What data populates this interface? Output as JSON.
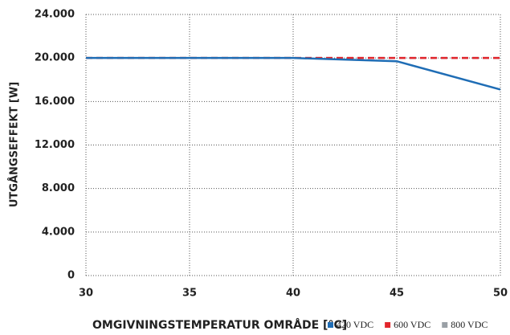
{
  "chart_data": {
    "type": "line",
    "x_label": "OMGIVNINGSTEMPERATUR OMRÅDE [°C]",
    "y_label": "UTGÅNGSEFFEKT [W]",
    "x": [
      30,
      40,
      45,
      50
    ],
    "series": [
      {
        "name": "420 VDC",
        "color": "#1f6db5",
        "dash": false,
        "values": [
          20000,
          20000,
          19700,
          17100
        ]
      },
      {
        "name": "600 VDC",
        "color": "#e2262c",
        "dash": true,
        "values": [
          20000,
          20000,
          20000,
          20000
        ]
      },
      {
        "name": "800 VDC",
        "color": "#9aa0a6",
        "dash": true,
        "values": [
          20000,
          20000,
          20000,
          20000
        ]
      }
    ],
    "xlim": [
      30,
      50
    ],
    "xticks": [
      30,
      35,
      40,
      45,
      50
    ],
    "ylim": [
      0,
      24000
    ],
    "yticks": [
      0,
      {
        "value": 4000,
        "label": "4.000"
      },
      {
        "value": 8000,
        "label": "8.000"
      },
      {
        "value": 12000,
        "label": "12.000"
      },
      {
        "value": 16000,
        "label": "16.000"
      },
      {
        "value": 20000,
        "label": "20.000"
      },
      {
        "value": 24000,
        "label": "24.000"
      }
    ],
    "grid": true
  }
}
